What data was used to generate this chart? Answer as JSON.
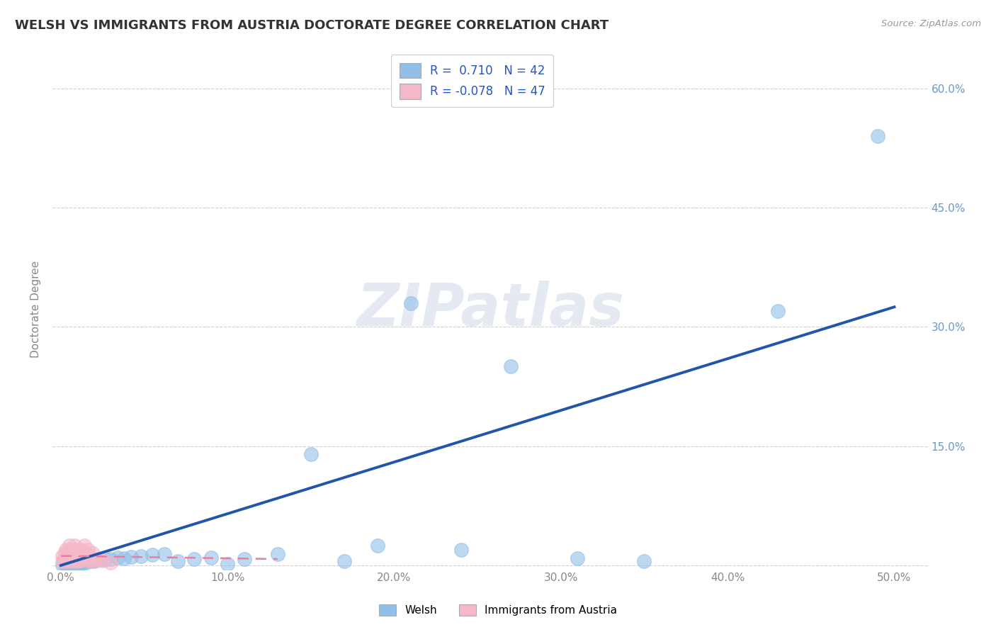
{
  "title": "WELSH VS IMMIGRANTS FROM AUSTRIA DOCTORATE DEGREE CORRELATION CHART",
  "source_text": "Source: ZipAtlas.com",
  "ylabel": "Doctorate Degree",
  "xlim": [
    -0.005,
    0.52
  ],
  "ylim": [
    -0.005,
    0.65
  ],
  "xticks": [
    0.0,
    0.1,
    0.2,
    0.3,
    0.4,
    0.5
  ],
  "yticks": [
    0.0,
    0.15,
    0.3,
    0.45,
    0.6
  ],
  "ytick_labels": [
    "",
    "15.0%",
    "30.0%",
    "45.0%",
    "60.0%"
  ],
  "xtick_labels": [
    "0.0%",
    "10.0%",
    "20.0%",
    "30.0%",
    "40.0%",
    "50.0%"
  ],
  "welsh_R": 0.71,
  "welsh_N": 42,
  "austria_R": -0.078,
  "austria_N": 47,
  "welsh_color": "#92bfe8",
  "austria_color": "#f5b8c8",
  "welsh_line_color": "#2255aa",
  "austria_line_color": "#e87fa0",
  "watermark": "ZIPatlas",
  "welsh_x": [
    0.001,
    0.002,
    0.003,
    0.004,
    0.005,
    0.006,
    0.007,
    0.008,
    0.009,
    0.01,
    0.011,
    0.012,
    0.013,
    0.015,
    0.017,
    0.019,
    0.021,
    0.024,
    0.027,
    0.03,
    0.034,
    0.038,
    0.042,
    0.048,
    0.055,
    0.062,
    0.07,
    0.08,
    0.09,
    0.1,
    0.11,
    0.13,
    0.15,
    0.17,
    0.19,
    0.21,
    0.24,
    0.27,
    0.31,
    0.35,
    0.43,
    0.49
  ],
  "welsh_y": [
    0.001,
    0.002,
    0.001,
    0.002,
    0.001,
    0.002,
    0.003,
    0.002,
    0.003,
    0.002,
    0.003,
    0.004,
    0.003,
    0.004,
    0.005,
    0.005,
    0.006,
    0.007,
    0.008,
    0.008,
    0.01,
    0.009,
    0.011,
    0.012,
    0.013,
    0.014,
    0.005,
    0.008,
    0.01,
    0.002,
    0.008,
    0.014,
    0.14,
    0.005,
    0.025,
    0.33,
    0.02,
    0.25,
    0.009,
    0.005,
    0.32,
    0.54
  ],
  "austria_x": [
    0.001,
    0.001,
    0.002,
    0.002,
    0.002,
    0.003,
    0.003,
    0.003,
    0.004,
    0.004,
    0.004,
    0.005,
    0.005,
    0.005,
    0.006,
    0.006,
    0.006,
    0.007,
    0.007,
    0.007,
    0.008,
    0.008,
    0.008,
    0.009,
    0.009,
    0.01,
    0.01,
    0.01,
    0.011,
    0.011,
    0.012,
    0.012,
    0.013,
    0.013,
    0.014,
    0.014,
    0.015,
    0.015,
    0.016,
    0.016,
    0.017,
    0.018,
    0.019,
    0.02,
    0.022,
    0.025,
    0.03
  ],
  "austria_y": [
    0.005,
    0.012,
    0.008,
    0.015,
    0.005,
    0.01,
    0.02,
    0.007,
    0.012,
    0.018,
    0.006,
    0.015,
    0.008,
    0.025,
    0.01,
    0.02,
    0.005,
    0.012,
    0.018,
    0.007,
    0.015,
    0.008,
    0.025,
    0.01,
    0.02,
    0.012,
    0.018,
    0.005,
    0.015,
    0.008,
    0.02,
    0.006,
    0.012,
    0.018,
    0.01,
    0.025,
    0.008,
    0.015,
    0.012,
    0.02,
    0.006,
    0.01,
    0.015,
    0.005,
    0.008,
    0.006,
    0.004
  ],
  "welsh_line_x0": 0.0,
  "welsh_line_y0": 0.0,
  "welsh_line_x1": 0.5,
  "welsh_line_y1": 0.325,
  "austria_line_x0": 0.0,
  "austria_line_y0": 0.012,
  "austria_line_x1": 0.13,
  "austria_line_y1": 0.008
}
